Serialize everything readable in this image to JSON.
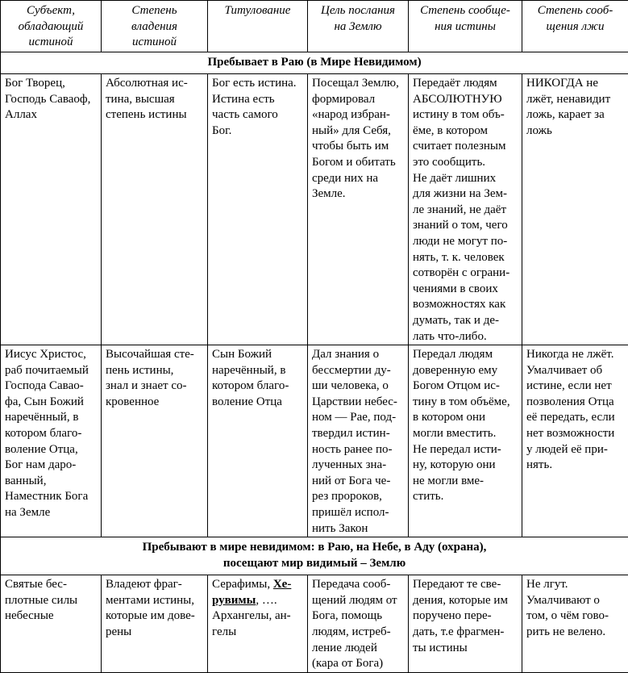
{
  "headers": [
    "Субъект,\nобладающий\nистиной",
    "Степень\nвладения\nистиной",
    "Титулование",
    "Цель послания\nна Землю",
    "Степень сообще-\nния истины",
    "Степень сооб-\nщения лжи"
  ],
  "section1": "Пребывает в Раю (в Мире Невидимом)",
  "row1": [
    "Бог Творец,\nГосподь Саваоф,\nАллах",
    "Абсолютная ис-\nтина, высшая\nстепень истины",
    "Бог есть истина.\nИстина есть\nчасть самого\nБог.",
    "Посещал Землю,\nформировал\n«народ избран-\nный» для Себя,\nчтобы быть им\nБогом и обитать\nсреди них на\nЗемле.",
    "Передаёт людям\nАБСОЛЮТНУЮ\nистину в том объ-\nёме, в котором\nсчитает полезным\nэто сообщить.\nНе даёт лишних\nдля жизни на Зем-\nле знаний, не даёт\nзнаний о том, чего\nлюди не могут по-\nнять, т. к. человек\nсотворён с ограни-\nчениями в своих\nвозможностях как\nдумать, так и де-\nлать что-либо.",
    "НИКОГДА не\nлжёт, ненавидит\nложь, карает за\nложь"
  ],
  "row2": [
    "Иисус Христос,\nраб почитаемый\nГоспода Савао-\nфа, Сын Божий\nнаречённый, в\nкотором благо-\nволение Отца,\nБог нам даро-\nванный,\nНаместник Бога\nна Земле",
    "Высочайшая сте-\nпень истины,\nзнал и знает со-\nкровенное",
    "Сын Божий\nнаречённый, в\nкотором благо-\nволение Отца",
    "Дал знания о\nбессмертии ду-\nши человека, о\nЦарствии небес-\nном — Рае, под-\nтвердил истин-\nность ранее по-\nлученных зна-\nний от Бога че-\nрез пророков,\nпришёл испол-\nнить Закон",
    "Передал людям\nдоверенную ему\nБогом Отцом ис-\nтину в том объёме,\nв котором они\nмогли вместить.\nНе передал исти-\nну, которую они\nне могли вме-\nстить.",
    "Никогда не лжёт.\nУмалчивает об\nистине, если нет\nпозволения Отца\nеё передать, если\nнет возможности\nу людей её при-\nнять."
  ],
  "section2": "Пребывают в мире невидимом: в Раю, на Небе, в Аду (охрана),\nпосещают мир видимый – Землю",
  "row3": {
    "c0": "Святые бес-\nплотные силы\nнебесные",
    "c1": "Владеют фраг-\nментами истины,\nкоторые им дове-\nрены",
    "c2_pre": "Серафимы, ",
    "c2_bold": "Хе-\nрувимы",
    "c2_post": ", ….\nАрхангелы, ан-\nгелы",
    "c3": "Передача сооб-\nщений людям от\nБога, помощь\nлюдям, истреб-\nление людей\n(кара от Бога)",
    "c4": "Передают те све-\nдения, которые им\nпоручено пере-\nдать, т.е фрагмен-\nты истины",
    "c5": "Не лгут.\nУмалчивают о\nтом, о чём гово-\nрить не велено."
  }
}
